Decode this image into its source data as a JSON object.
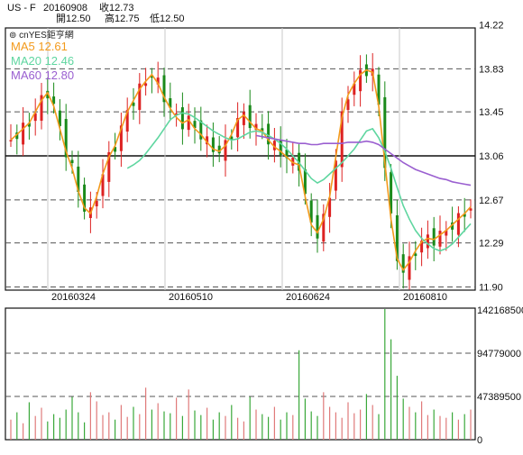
{
  "header": {
    "symbol": "US - F",
    "date": "20160908",
    "close_label": "收12.73",
    "open_label": "開12.50",
    "high_label": "高12.75",
    "low_label": "低12.50",
    "brand": "cnYES鉅亨網",
    "ma5_label": "MA5 12.61",
    "ma20_label": "MA20 12.46",
    "ma60_label": "MA60 12.80"
  },
  "colors": {
    "up": "#dd2222",
    "down": "#1a8a1a",
    "ma5": "#f39a1c",
    "ma20": "#5fd6a0",
    "ma60": "#9a5fd0",
    "grid": "#555555",
    "vgrid": "#c8c8c8"
  },
  "chart_data": [
    {
      "type": "candlestick",
      "title": "",
      "y_ticks": [
        14.22,
        13.83,
        13.45,
        13.06,
        12.67,
        12.29,
        11.9
      ],
      "ylim": [
        11.9,
        14.22
      ],
      "reference_level": 13.06,
      "x_tick_labels": [
        "20160324",
        "20160510",
        "20160624",
        "20160810"
      ],
      "series": [
        {
          "name": "MA5",
          "values": [
            13.2,
            13.25,
            13.3,
            13.35,
            13.45,
            13.55,
            13.62,
            13.5,
            13.3,
            13.1,
            12.95,
            12.75,
            12.6,
            12.55,
            12.7,
            12.9,
            13.05,
            13.15,
            13.3,
            13.45,
            13.55,
            13.65,
            13.72,
            13.78,
            13.7,
            13.58,
            13.48,
            13.4,
            13.35,
            13.38,
            13.3,
            13.25,
            13.18,
            13.12,
            13.1,
            13.15,
            13.25,
            13.38,
            13.42,
            13.36,
            13.3,
            13.28,
            13.2,
            13.14,
            13.1,
            13.05,
            13.0,
            12.98,
            12.7,
            12.45,
            12.38,
            12.5,
            12.7,
            13.05,
            13.4,
            13.6,
            13.7,
            13.78,
            13.82,
            13.8,
            13.5,
            13.0,
            12.5,
            12.15,
            12.05,
            12.12,
            12.22,
            12.3,
            12.33,
            12.32,
            12.36,
            12.4,
            12.45,
            12.5,
            12.55,
            12.61
          ]
        },
        {
          "name": "MA20",
          "values": [
            null,
            null,
            null,
            null,
            null,
            null,
            null,
            null,
            null,
            null,
            null,
            null,
            null,
            null,
            null,
            null,
            null,
            null,
            null,
            12.95,
            12.98,
            13.02,
            13.08,
            13.15,
            13.22,
            13.3,
            13.38,
            13.42,
            13.44,
            13.43,
            13.4,
            13.36,
            13.32,
            13.28,
            13.25,
            13.22,
            13.2,
            13.21,
            13.24,
            13.27,
            13.28,
            13.27,
            13.24,
            13.21,
            13.17,
            13.12,
            13.06,
            13.0,
            12.93,
            12.86,
            12.82,
            12.85,
            12.9,
            12.95,
            13.0,
            13.06,
            13.12,
            13.2,
            13.28,
            13.3,
            13.22,
            13.1,
            12.95,
            12.78,
            12.62,
            12.5,
            12.4,
            12.33,
            12.28,
            12.24,
            12.22,
            12.24,
            12.28,
            12.34,
            12.4,
            12.46
          ]
        },
        {
          "name": "MA60",
          "values": [
            null,
            null,
            null,
            null,
            null,
            null,
            null,
            null,
            null,
            null,
            null,
            null,
            null,
            null,
            null,
            null,
            null,
            null,
            null,
            null,
            null,
            null,
            null,
            null,
            null,
            null,
            null,
            null,
            null,
            null,
            null,
            null,
            null,
            null,
            null,
            null,
            null,
            null,
            null,
            null,
            13.24,
            13.23,
            13.22,
            13.21,
            13.2,
            13.19,
            13.18,
            13.17,
            13.17,
            13.16,
            13.16,
            13.17,
            13.17,
            13.17,
            13.17,
            13.18,
            13.18,
            13.18,
            13.19,
            13.18,
            13.16,
            13.12,
            13.08,
            13.04,
            13.0,
            12.97,
            12.94,
            12.92,
            12.9,
            12.88,
            12.86,
            12.85,
            12.83,
            12.82,
            12.81,
            12.8
          ]
        }
      ]
    },
    {
      "type": "bar",
      "title": "",
      "y_ticks": [
        142168500,
        94779000,
        47389500,
        0
      ],
      "ylim": [
        0,
        142168500
      ],
      "values": [
        22000000,
        30000000,
        18000000,
        41000000,
        26000000,
        35000000,
        20000000,
        28000000,
        24000000,
        33000000,
        47000000,
        30000000,
        19000000,
        52000000,
        42000000,
        27000000,
        30000000,
        22000000,
        38000000,
        25000000,
        36000000,
        28000000,
        57000000,
        33000000,
        40000000,
        31000000,
        29000000,
        46000000,
        26000000,
        55000000,
        32000000,
        27000000,
        35000000,
        22000000,
        30000000,
        26000000,
        38000000,
        24000000,
        20000000,
        47000000,
        33000000,
        28000000,
        25000000,
        36000000,
        22000000,
        30000000,
        27000000,
        98000000,
        45000000,
        31000000,
        26000000,
        52000000,
        36000000,
        30000000,
        24000000,
        41000000,
        29000000,
        33000000,
        50000000,
        38000000,
        28000000,
        148000000,
        110000000,
        70000000,
        45000000,
        36000000,
        30000000,
        42000000,
        27000000,
        33000000,
        26000000,
        24000000,
        30000000,
        22000000,
        28000000,
        33000000
      ]
    }
  ]
}
